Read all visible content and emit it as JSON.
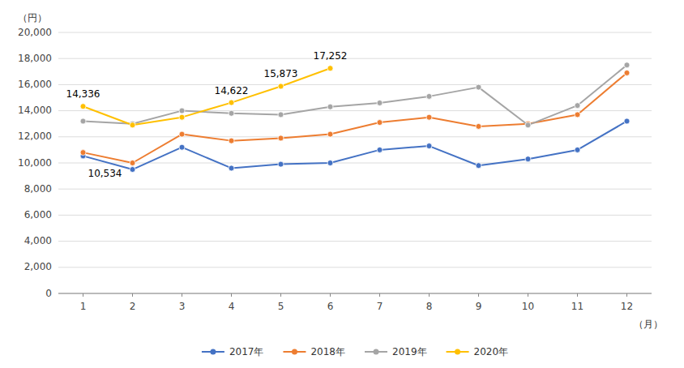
{
  "chart_data": {
    "type": "line",
    "x": [
      1,
      2,
      3,
      4,
      5,
      6,
      7,
      8,
      9,
      10,
      11,
      12
    ],
    "xlim": [
      0.5,
      12.5
    ],
    "xticks": [
      1,
      2,
      3,
      4,
      5,
      6,
      7,
      8,
      9,
      10,
      11,
      12
    ],
    "ylim": [
      0,
      20000
    ],
    "yticks": [
      0,
      {
        "value": 2000,
        "label": "2,000"
      },
      {
        "value": 4000,
        "label": "4,000"
      },
      {
        "value": 6000,
        "label": "6,000"
      },
      {
        "value": 8000,
        "label": "8,000"
      },
      {
        "value": 10000,
        "label": "10,000"
      },
      {
        "value": 12000,
        "label": "12,000"
      },
      {
        "value": 14000,
        "label": "14,000"
      },
      {
        "value": 16000,
        "label": "16,000"
      },
      {
        "value": 18000,
        "label": "18,000"
      },
      {
        "value": 20000,
        "label": "20,000"
      }
    ],
    "y_label": "（円）",
    "x_label": "（月）",
    "grid": true,
    "legend": "bottom",
    "marker": "circle",
    "series": [
      {
        "name": "2017年",
        "color": "#4472C4",
        "values": [
          10534,
          9500,
          11200,
          9600,
          9900,
          10000,
          11000,
          11300,
          9800,
          10300,
          11000,
          13200
        ]
      },
      {
        "name": "2018年",
        "color": "#ED7D31",
        "values": [
          10800,
          10000,
          12200,
          11700,
          11900,
          12200,
          13100,
          13500,
          12800,
          13000,
          13700,
          16900
        ]
      },
      {
        "name": "2019年",
        "color": "#A5A5A5",
        "values": [
          13200,
          13000,
          14000,
          13800,
          13700,
          14300,
          14600,
          15100,
          15800,
          12900,
          14400,
          17500
        ]
      },
      {
        "name": "2020年",
        "color": "#FFC000",
        "values": [
          14336,
          12900,
          13500,
          14622,
          15873,
          17252,
          null,
          null,
          null,
          null,
          null,
          null
        ]
      }
    ],
    "annotations": [
      {
        "series": "2020年",
        "x": 1,
        "y": 14336,
        "text": "14,336"
      },
      {
        "series": "2017年",
        "x": 1,
        "y": 10534,
        "text": "10,534"
      },
      {
        "series": "2020年",
        "x": 4,
        "y": 14622,
        "text": "14,622"
      },
      {
        "series": "2020年",
        "x": 5,
        "y": 15873,
        "text": "15,873"
      },
      {
        "series": "2020年",
        "x": 6,
        "y": 17252,
        "text": "17,252"
      }
    ]
  }
}
